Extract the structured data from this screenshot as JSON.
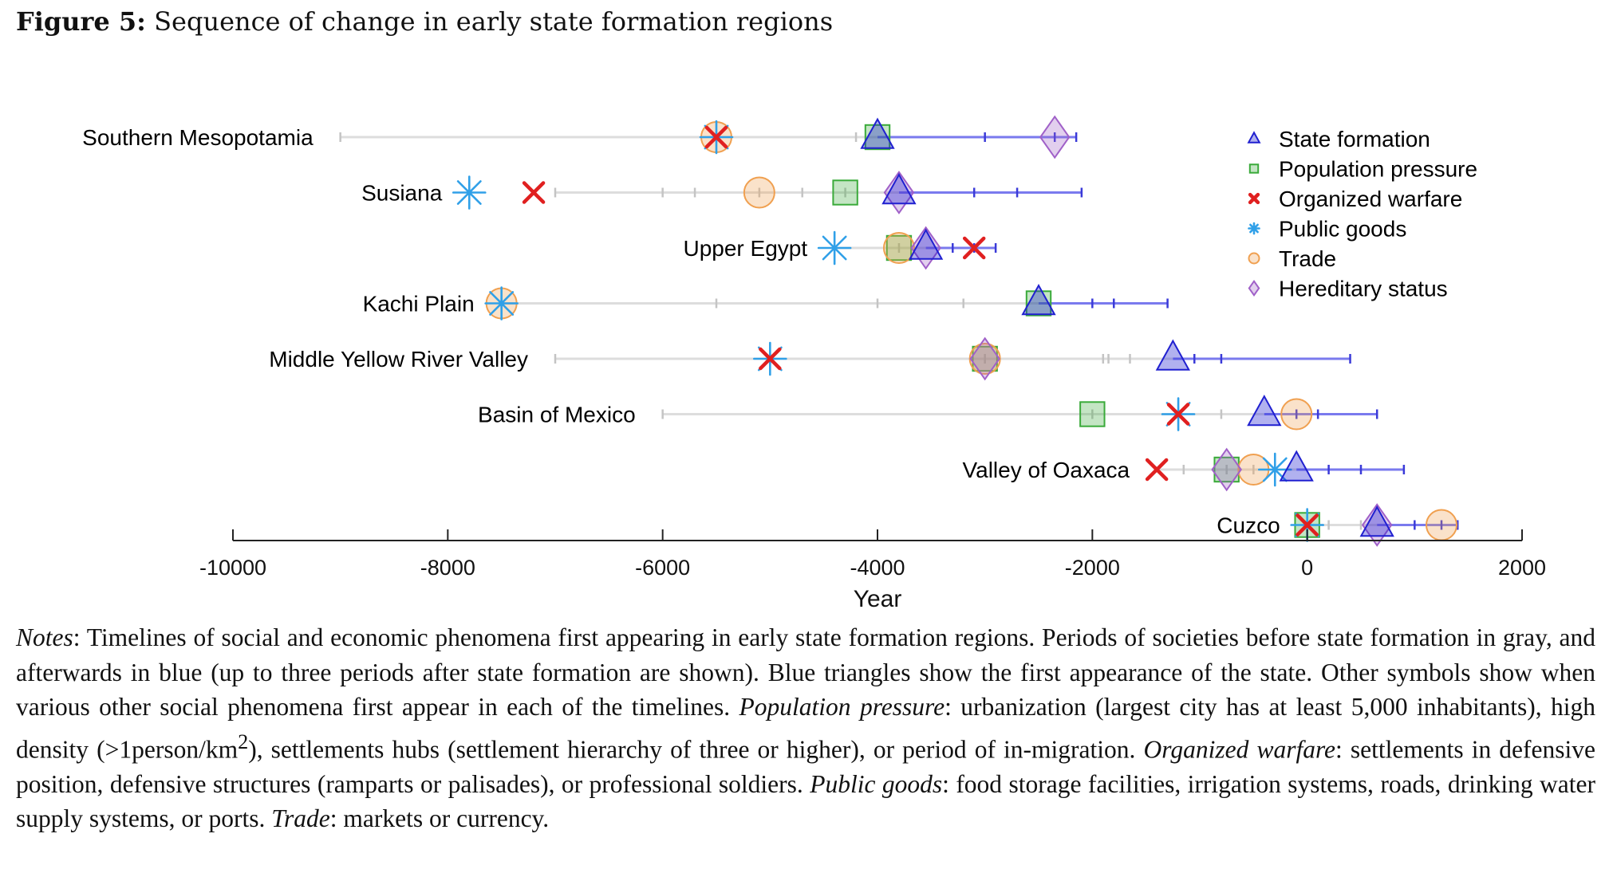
{
  "figure": {
    "label": "Figure 5:",
    "title": "Sequence of change in early state formation regions"
  },
  "notes": {
    "lead": "Notes",
    "text1": ": Timelines of social and economic phenomena first appearing in early state formation regions. Periods of societies before state formation in gray, and afterwards in blue (up to three periods after state formation are shown). Blue triangles show the first appearance of the state. Other symbols show when various other social phenomena first appear in each of the timelines. ",
    "pp_term": "Population pressure",
    "pp_text_a": ": urbanization (largest city has at least 5,000 inhabitants), high density (>1person/km",
    "pp_sup": "2",
    "pp_text_b": "), settlements hubs (settlement hierarchy of three or higher), or period of in-migration. ",
    "ow_term": "Organized warfare",
    "ow_text": ": settlements in defensive position, defensive structures (ramparts or palisades), or professional soldiers. ",
    "pg_term": "Public goods",
    "pg_text": ": food storage facilities, irrigation systems, roads, drinking water supply systems, or ports. ",
    "tr_term": "Trade",
    "tr_text": ": markets or currency."
  },
  "chart_data": {
    "type": "scatter",
    "title": "",
    "xlabel": "Year",
    "xlim": [
      -10000,
      2000
    ],
    "xticks": [
      -10000,
      -8000,
      -6000,
      -4000,
      -2000,
      0,
      2000
    ],
    "xtick_labels": [
      "-10000",
      "-8000",
      "-6000",
      "-4000",
      "-2000",
      "0",
      "2000"
    ],
    "grid": false,
    "legend_position": "top-right",
    "colors": {
      "state": "#2020d0",
      "population": "#3aaa3a",
      "warfare": "#e02020",
      "public": "#30a0e8",
      "trade": "#f0a050",
      "hereditary": "#a060c8",
      "gray_line": "#dddddd",
      "blue_line": "#7a7aee"
    },
    "legend": [
      {
        "key": "state",
        "label": "State formation"
      },
      {
        "key": "population",
        "label": "Population pressure"
      },
      {
        "key": "warfare",
        "label": "Organized warfare"
      },
      {
        "key": "public",
        "label": "Public goods"
      },
      {
        "key": "trade",
        "label": "Trade"
      },
      {
        "key": "hereditary",
        "label": "Hereditary status"
      }
    ],
    "regions": [
      {
        "name": "Southern Mesopotamia",
        "gray": [
          -9000,
          -4000
        ],
        "gray_ticks": [
          -9000,
          -5500,
          -4200
        ],
        "blue": [
          -4000,
          -2150
        ],
        "blue_ticks": [
          -3000,
          -2350,
          -2150
        ],
        "state": -4000,
        "population": -4000,
        "warfare": -5500,
        "public": -5500,
        "trade": -5500,
        "hereditary": -2350
      },
      {
        "name": "Susiana",
        "gray": [
          -7000,
          -3800
        ],
        "gray_ticks": [
          -7000,
          -6000,
          -5700,
          -5100,
          -4700,
          -4300
        ],
        "blue": [
          -3800,
          -2100
        ],
        "blue_ticks": [
          -3100,
          -2700,
          -2100
        ],
        "state": -3800,
        "population": -4300,
        "warfare": -7200,
        "public": -7800,
        "trade": -5100,
        "hereditary": -3800
      },
      {
        "name": "Upper Egypt",
        "gray": [
          -4400,
          -3550
        ],
        "gray_ticks": [
          -3800
        ],
        "blue": [
          -3550,
          -2900
        ],
        "blue_ticks": [
          -3300,
          -3100,
          -2900
        ],
        "state": -3550,
        "population": -3800,
        "warfare": -3100,
        "public": -4400,
        "trade": -3800,
        "hereditary": -3550
      },
      {
        "name": "Kachi Plain",
        "gray": [
          -7500,
          -2500
        ],
        "gray_ticks": [
          -7500,
          -5500,
          -4000,
          -3200
        ],
        "blue": [
          -2500,
          -1300
        ],
        "blue_ticks": [
          -2000,
          -1800,
          -1300
        ],
        "state": -2500,
        "population": -2500,
        "warfare": null,
        "public": -7500,
        "trade": -7500,
        "hereditary": null
      },
      {
        "name": "Middle Yellow River Valley",
        "gray": [
          -7000,
          -1250
        ],
        "gray_ticks": [
          -7000,
          -5000,
          -3000,
          -1900,
          -1850,
          -1650
        ],
        "blue": [
          -1250,
          400
        ],
        "blue_ticks": [
          -1050,
          -800,
          400
        ],
        "state": -1250,
        "population": -3000,
        "warfare": -5000,
        "public": -5000,
        "trade": -3000,
        "hereditary": -3000
      },
      {
        "name": "Basin of Mexico",
        "gray": [
          -6000,
          -400
        ],
        "gray_ticks": [
          -6000,
          -2000,
          -1200,
          -800
        ],
        "blue": [
          -400,
          650
        ],
        "blue_ticks": [
          -100,
          100,
          650
        ],
        "state": -400,
        "population": -2000,
        "warfare": -1200,
        "public": -1200,
        "trade": -100,
        "hereditary": null
      },
      {
        "name": "Valley of Oaxaca",
        "gray": [
          -1400,
          -100
        ],
        "gray_ticks": [
          -1150,
          -750,
          -500,
          -300
        ],
        "blue": [
          -100,
          900
        ],
        "blue_ticks": [
          200,
          500,
          900
        ],
        "state": -100,
        "population": -750,
        "warfare": -1400,
        "public": -300,
        "trade": -500,
        "hereditary": -750
      },
      {
        "name": "Cuzco",
        "gray": [
          0,
          650
        ],
        "gray_ticks": [
          0,
          200,
          500
        ],
        "blue": [
          650,
          1400
        ],
        "blue_ticks": [
          1000,
          1250,
          1400
        ],
        "state": 650,
        "population": 0,
        "warfare": 0,
        "public": 0,
        "trade": 1250,
        "hereditary": 650
      }
    ]
  }
}
